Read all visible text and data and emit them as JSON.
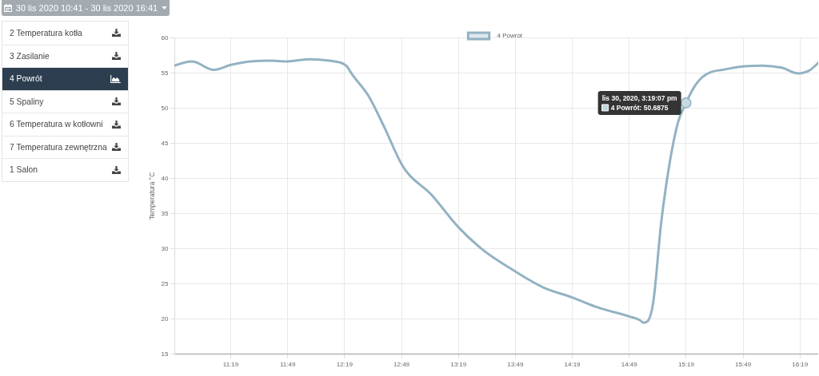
{
  "chart_data": [
    {
      "type": "other",
      "title": "30 lis 2020 10:41 - 30 lis 2020 16:41",
      "annotations": [
        "2 Temperatura kotła",
        "3 Zasilanie",
        "4 Powrót",
        "5 Spaliny",
        "6 Temperatura w kotłowni",
        "7 Temperatura zewnętrzna",
        "1 Salon"
      ]
    },
    {
      "type": "line",
      "ylabel": "Temperatura °C",
      "x": [
        10.825,
        10.98,
        11.17,
        11.32,
        11.49,
        11.66,
        11.82,
        12.01,
        12.19,
        12.29,
        12.34,
        12.38,
        12.53,
        12.67,
        12.82,
        13.09,
        13.32,
        13.51,
        13.82,
        14.07,
        14.32,
        14.54,
        14.82,
        14.91,
        14.95,
        14.98,
        15.03,
        15.1,
        15.18,
        15.25,
        15.3186,
        15.4,
        15.54,
        15.64,
        15.83,
        15.99,
        16.16,
        16.3,
        16.39,
        16.48
      ],
      "series": [
        {
          "name": "4 Powrót",
          "color": "#93b2c3",
          "values": [
            56.0,
            56.6,
            55.4,
            56.1,
            56.6,
            56.7,
            56.6,
            56.9,
            56.7,
            56.4,
            55.9,
            54.9,
            51.7,
            47.2,
            42.0,
            37.5,
            33.0,
            30.1,
            26.7,
            24.4,
            23.0,
            21.6,
            20.3,
            19.8,
            19.4,
            19.6,
            22.2,
            33.5,
            42.6,
            48.0,
            50.6875,
            53.2,
            55.1,
            55.4,
            55.9,
            56.0,
            55.7,
            54.9,
            55.2,
            56.4
          ]
        }
      ],
      "xlim": [
        10.825,
        16.48
      ],
      "xticks": [
        {
          "value": 11.3167,
          "label": "11:19"
        },
        {
          "value": 11.8167,
          "label": "11:49"
        },
        {
          "value": 12.3167,
          "label": "12:19"
        },
        {
          "value": 12.8167,
          "label": "12:49"
        },
        {
          "value": 13.3167,
          "label": "13:19"
        },
        {
          "value": 13.8167,
          "label": "13:49"
        },
        {
          "value": 14.3167,
          "label": "14:19"
        },
        {
          "value": 14.8167,
          "label": "14:49"
        },
        {
          "value": 15.3167,
          "label": "15:19"
        },
        {
          "value": 15.8167,
          "label": "15:49"
        },
        {
          "value": 16.3167,
          "label": "16:19"
        }
      ],
      "ylim": [
        15,
        60
      ],
      "yticks": [
        15,
        20,
        25,
        30,
        35,
        40,
        45,
        50,
        55,
        60
      ],
      "grid": true,
      "legend": "top",
      "annotations": [
        {
          "text": "lis 30, 2020, 3:19:07 pm",
          "x": 15.3186,
          "y": 50.6875
        },
        {
          "text": "4 Powrót: 50.6875",
          "x": 15.3186,
          "y": 50.6875
        }
      ]
    }
  ]
}
